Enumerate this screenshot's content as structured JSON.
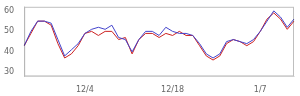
{
  "chart_data": {
    "type": "line",
    "categories": [
      null,
      null,
      null,
      null,
      null,
      null,
      null,
      null,
      null,
      "12/4",
      null,
      null,
      null,
      null,
      null,
      null,
      null,
      null,
      null,
      null,
      null,
      null,
      "12/18",
      null,
      null,
      null,
      null,
      null,
      null,
      null,
      null,
      null,
      null,
      null,
      null,
      "1/7",
      null,
      null,
      null,
      null,
      null
    ],
    "series": [
      {
        "color": "#4444cc",
        "values": [
          43,
          50,
          55,
          55,
          54,
          46,
          38,
          41,
          44,
          49,
          51,
          52,
          51,
          53,
          47,
          46,
          40,
          46,
          50,
          50,
          48,
          52,
          50,
          49,
          49,
          48,
          44,
          39,
          37,
          39,
          45,
          46,
          45,
          44,
          46,
          50,
          55,
          60,
          57,
          52,
          56
        ]
      },
      {
        "color": "#cc2222",
        "values": [
          43,
          49,
          55,
          55,
          53,
          44,
          37,
          39,
          43,
          49,
          50,
          48,
          50,
          50,
          46,
          47,
          39,
          46,
          49,
          49,
          47,
          49,
          48,
          50,
          48,
          48,
          43,
          38,
          36,
          38,
          44,
          46,
          45,
          43,
          45,
          50,
          56,
          59,
          56,
          51,
          55
        ]
      }
    ],
    "ylim": [
      28,
      62
    ],
    "yticks": [
      30,
      40,
      50,
      60
    ],
    "grid": false
  }
}
